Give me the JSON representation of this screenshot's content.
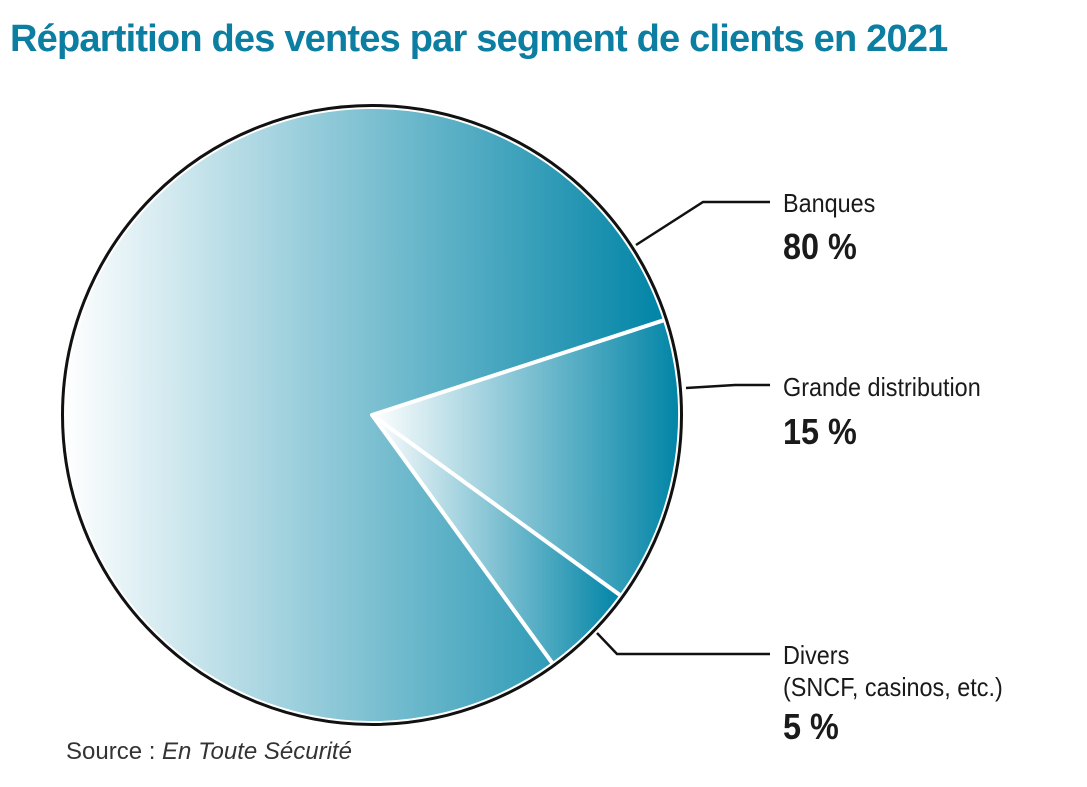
{
  "chart_data": {
    "type": "pie",
    "title": "Répartition des ventes par segment de clients en 2021",
    "slices": [
      {
        "label": "Banques",
        "value": 80,
        "value_label": "80 %"
      },
      {
        "label": "Grande distribution",
        "value": 15,
        "value_label": "15 %"
      },
      {
        "label": "Divers",
        "sublabel": "(SNCF, casinos, etc.)",
        "value": 5,
        "value_label": "5 %"
      }
    ],
    "source_prefix": "Source : ",
    "source_name": "En Toute Sécurité",
    "colors": {
      "title": "#0b7ea1",
      "slice_dark": "#0084a6",
      "slice_light": "#ffffff",
      "outline": "#111111"
    }
  }
}
